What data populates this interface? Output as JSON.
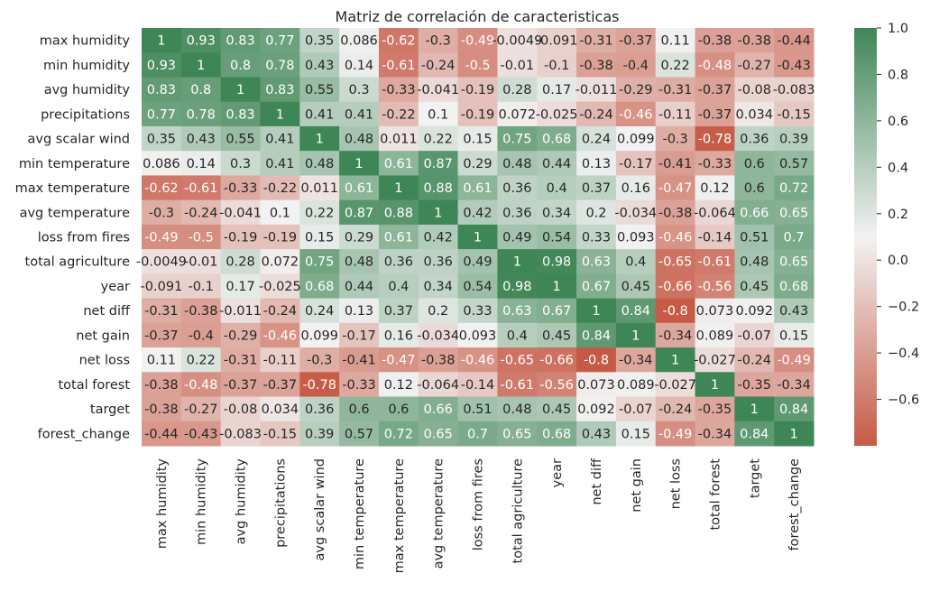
{
  "chart_data": {
    "type": "heatmap",
    "title": "Matriz de correlación de caracteristicas",
    "xlabel": "",
    "ylabel": "",
    "labels": [
      "max humidity",
      "min humidity",
      "avg humidity",
      "precipitations",
      "avg scalar wind",
      "min temperature",
      "max temperature",
      "avg temperature",
      "loss from fires",
      "total agriculture",
      "year",
      "net diff",
      "net gain",
      "net loss",
      "total forest",
      "target",
      "forest_change"
    ],
    "values": [
      [
        1,
        0.93,
        0.83,
        0.77,
        0.35,
        0.086,
        -0.62,
        -0.3,
        -0.49,
        -0.0049,
        -0.091,
        -0.31,
        -0.37,
        0.11,
        -0.38,
        -0.38,
        -0.44
      ],
      [
        0.93,
        1,
        0.8,
        0.78,
        0.43,
        0.14,
        -0.61,
        -0.24,
        -0.5,
        -0.01,
        -0.1,
        -0.38,
        -0.4,
        0.22,
        -0.48,
        -0.27,
        -0.43
      ],
      [
        0.83,
        0.8,
        1,
        0.83,
        0.55,
        0.3,
        -0.33,
        -0.041,
        -0.19,
        0.28,
        0.17,
        -0.011,
        -0.29,
        -0.31,
        -0.37,
        -0.08,
        -0.083
      ],
      [
        0.77,
        0.78,
        0.83,
        1,
        0.41,
        0.41,
        -0.22,
        0.1,
        -0.19,
        0.072,
        -0.025,
        -0.24,
        -0.46,
        -0.11,
        -0.37,
        0.034,
        -0.15
      ],
      [
        0.35,
        0.43,
        0.55,
        0.41,
        1,
        0.48,
        0.011,
        0.22,
        0.15,
        0.75,
        0.68,
        0.24,
        0.099,
        -0.3,
        -0.78,
        0.36,
        0.39
      ],
      [
        0.086,
        0.14,
        0.3,
        0.41,
        0.48,
        1,
        0.61,
        0.87,
        0.29,
        0.48,
        0.44,
        0.13,
        -0.17,
        -0.41,
        -0.33,
        0.6,
        0.57
      ],
      [
        -0.62,
        -0.61,
        -0.33,
        -0.22,
        0.011,
        0.61,
        1,
        0.88,
        0.61,
        0.36,
        0.4,
        0.37,
        0.16,
        -0.47,
        0.12,
        0.6,
        0.72
      ],
      [
        -0.3,
        -0.24,
        -0.041,
        0.1,
        0.22,
        0.87,
        0.88,
        1,
        0.42,
        0.36,
        0.34,
        0.2,
        -0.034,
        -0.38,
        -0.064,
        0.66,
        0.65
      ],
      [
        -0.49,
        -0.5,
        -0.19,
        -0.19,
        0.15,
        0.29,
        0.61,
        0.42,
        1,
        0.49,
        0.54,
        0.33,
        0.093,
        -0.46,
        -0.14,
        0.51,
        0.7
      ],
      [
        -0.0049,
        -0.01,
        0.28,
        0.072,
        0.75,
        0.48,
        0.36,
        0.36,
        0.49,
        1,
        0.98,
        0.63,
        0.4,
        -0.65,
        -0.61,
        0.48,
        0.65
      ],
      [
        -0.091,
        -0.1,
        0.17,
        -0.025,
        0.68,
        0.44,
        0.4,
        0.34,
        0.54,
        0.98,
        1,
        0.67,
        0.45,
        -0.66,
        -0.56,
        0.45,
        0.68
      ],
      [
        -0.31,
        -0.38,
        -0.011,
        -0.24,
        0.24,
        0.13,
        0.37,
        0.2,
        0.33,
        0.63,
        0.67,
        1,
        0.84,
        -0.8,
        0.073,
        0.092,
        0.43
      ],
      [
        -0.37,
        -0.4,
        -0.29,
        -0.46,
        0.099,
        -0.17,
        0.16,
        -0.034,
        0.093,
        0.4,
        0.45,
        0.84,
        1,
        -0.34,
        0.089,
        -0.07,
        0.15
      ],
      [
        0.11,
        0.22,
        -0.31,
        -0.11,
        -0.3,
        -0.41,
        -0.47,
        -0.38,
        -0.46,
        -0.65,
        -0.66,
        -0.8,
        -0.34,
        1,
        -0.027,
        -0.24,
        -0.49
      ],
      [
        -0.38,
        -0.48,
        -0.37,
        -0.37,
        -0.78,
        -0.33,
        0.12,
        -0.064,
        -0.14,
        -0.61,
        -0.56,
        0.073,
        0.089,
        -0.027,
        1,
        -0.35,
        -0.34
      ],
      [
        -0.38,
        -0.27,
        -0.08,
        0.034,
        0.36,
        0.6,
        0.6,
        0.66,
        0.51,
        0.48,
        0.45,
        0.092,
        -0.07,
        -0.24,
        -0.35,
        1,
        0.84
      ],
      [
        -0.44,
        -0.43,
        -0.083,
        -0.15,
        0.39,
        0.57,
        0.72,
        0.65,
        0.7,
        0.65,
        0.68,
        0.43,
        0.15,
        -0.49,
        -0.34,
        0.84,
        1
      ]
    ],
    "colorbar": {
      "range": [
        -0.8,
        1.0
      ],
      "ticks": [
        1.0,
        0.8,
        0.6,
        0.4,
        0.2,
        0.0,
        -0.2,
        -0.4,
        -0.6
      ],
      "tick_labels": [
        "1.0",
        "0.8",
        "0.6",
        "0.4",
        "0.2",
        "0.0",
        "−0.2",
        "−0.4",
        "−0.6"
      ]
    },
    "colors": {
      "negative": "#c65a45",
      "center": "#f2f2f2",
      "positive": "#3f8656",
      "text_dark": "#262626",
      "text_light": "#ffffff"
    },
    "annotated": true,
    "grid": false
  }
}
